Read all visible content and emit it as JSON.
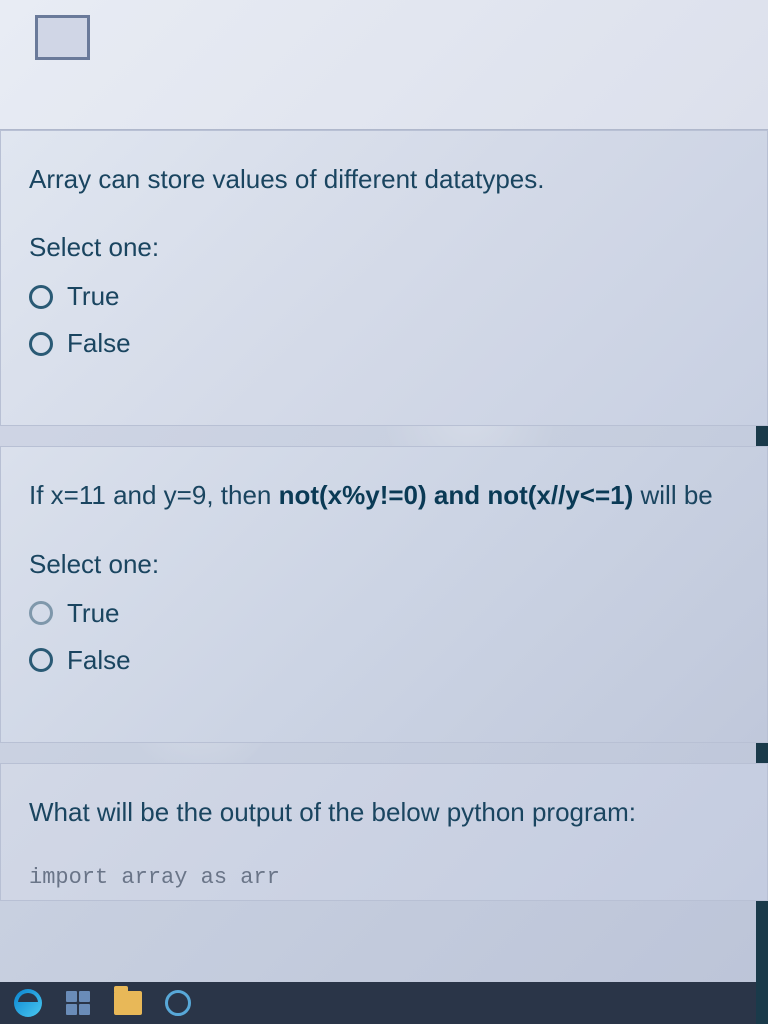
{
  "question1": {
    "text": "Array can store values of different datatypes.",
    "select_label": "Select one:",
    "option_true": "True",
    "option_false": "False"
  },
  "question2": {
    "prefix": "If x=11 and y=9, then ",
    "bold_part": "not(x%y!=0) and not(x//y<=1)",
    "suffix": " will be",
    "select_label": "Select one:",
    "option_true": "True",
    "option_false": "False"
  },
  "question3": {
    "text": "What will be the output of the below python program:",
    "code": "import array as arr"
  },
  "colors": {
    "text_primary": "#1a4560",
    "text_bold": "#0a3a55",
    "radio_border": "#2a5a75",
    "card_border": "#b8c0d4",
    "taskbar_bg": "#2a3548",
    "page_border": "#1a3a4a"
  }
}
